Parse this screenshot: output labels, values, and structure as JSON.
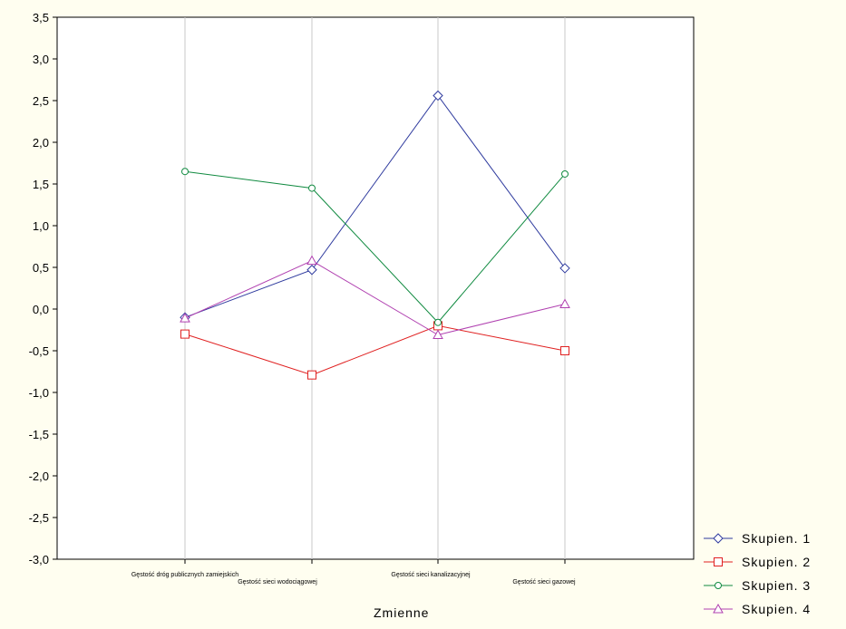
{
  "chart_data": {
    "type": "line",
    "categories": [
      "Gęstość dróg publicznych zamiejskich",
      "Gęstość sieci wodociągowej",
      "Gęstość sieci kanalizacyjnej",
      "Gęstość sieci gazowej"
    ],
    "series": [
      {
        "name": "Skupien. 1",
        "values": [
          -0.1,
          0.47,
          2.56,
          0.49
        ],
        "color": "#2e3a9e",
        "marker": "diamond"
      },
      {
        "name": "Skupien. 2",
        "values": [
          -0.3,
          -0.79,
          -0.2,
          -0.5
        ],
        "color": "#e02020",
        "marker": "square"
      },
      {
        "name": "Skupien. 3",
        "values": [
          1.65,
          1.45,
          -0.16,
          1.62
        ],
        "color": "#108a40",
        "marker": "circle"
      },
      {
        "name": "Skupien. 4",
        "values": [
          -0.11,
          0.58,
          -0.31,
          0.06
        ],
        "color": "#b040b0",
        "marker": "triangle"
      }
    ],
    "yticks": [
      "3,5",
      "3,0",
      "2,5",
      "2,0",
      "1,5",
      "1,0",
      "0,5",
      "0,0",
      "-0,5",
      "-1,0",
      "-1,5",
      "-2,0",
      "-2,5",
      "-3,0"
    ],
    "ylim": [
      -3.0,
      3.5
    ],
    "xlabel": "Zmienne",
    "ylabel": "",
    "title": "",
    "grid": true,
    "legend": "bottom-right"
  }
}
